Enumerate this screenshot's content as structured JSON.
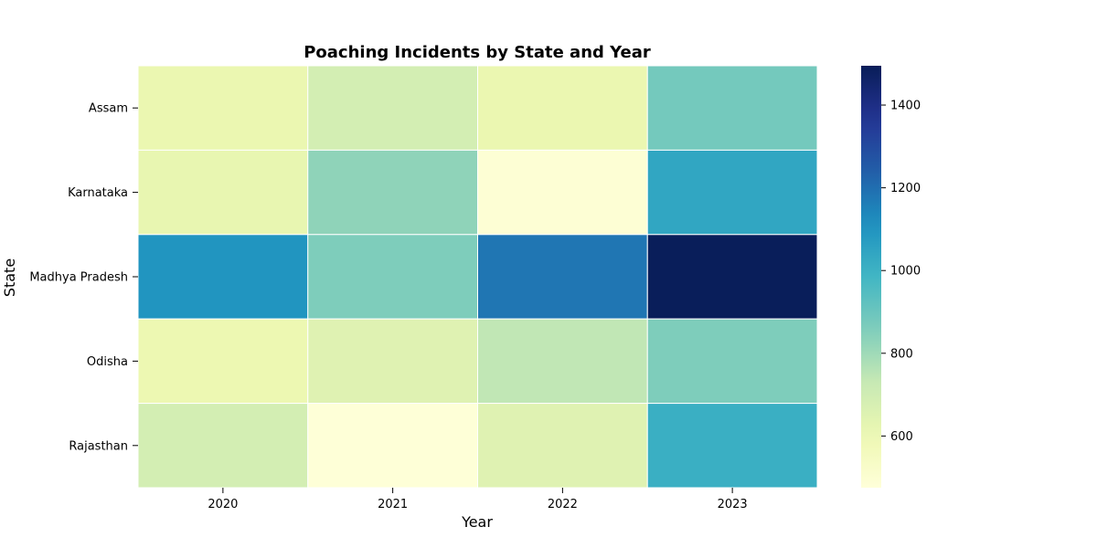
{
  "chart_data": {
    "type": "heatmap",
    "title": "Poaching Incidents by State and Year",
    "xlabel": "Year",
    "ylabel": "State",
    "x": [
      "2020",
      "2021",
      "2022",
      "2023"
    ],
    "y": [
      "Assam",
      "Karnataka",
      "Madhya Pradesh",
      "Odisha",
      "Rajasthan"
    ],
    "values": [
      [
        610,
        690,
        610,
        880
      ],
      [
        620,
        830,
        490,
        1040
      ],
      [
        1100,
        860,
        1180,
        1490
      ],
      [
        600,
        650,
        740,
        860
      ],
      [
        690,
        480,
        650,
        1010
      ]
    ],
    "colorbar": {
      "range": [
        475,
        1495
      ],
      "ticks": [
        600,
        800,
        1000,
        1200,
        1400
      ],
      "colormap": "YlGnBu"
    },
    "grid": true
  }
}
